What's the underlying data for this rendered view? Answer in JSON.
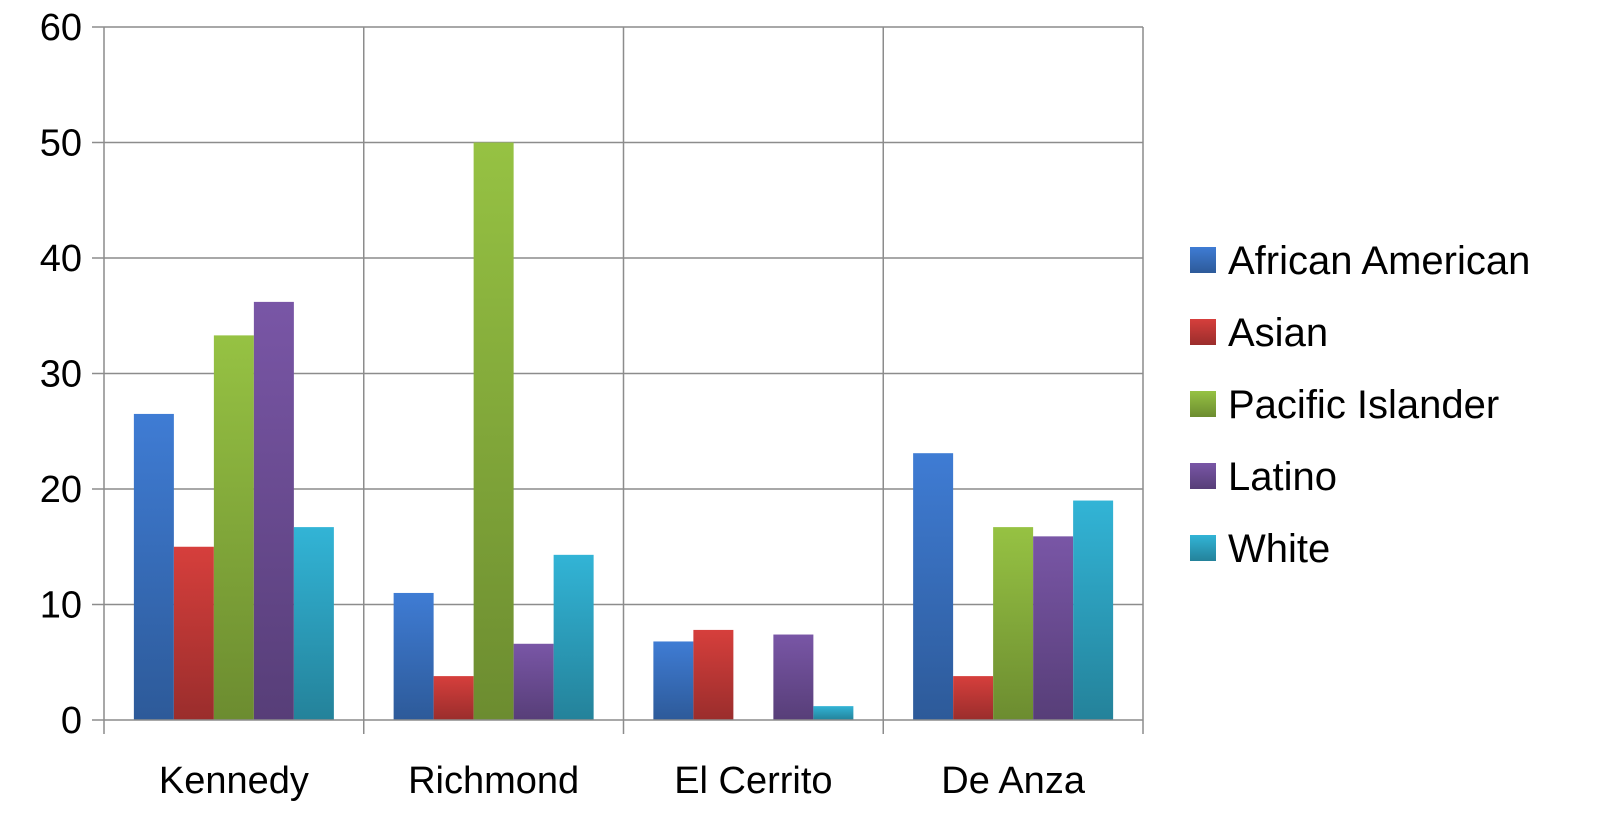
{
  "chart_data": {
    "type": "bar",
    "categories": [
      "Kennedy",
      "Richmond",
      "El Cerrito",
      "De Anza"
    ],
    "series": [
      {
        "name": "African American",
        "values": [
          26.5,
          11,
          6.8,
          23.1
        ]
      },
      {
        "name": "Asian",
        "values": [
          15,
          3.8,
          7.8,
          3.8
        ]
      },
      {
        "name": "Pacific Islander",
        "values": [
          33.3,
          50,
          0,
          16.7
        ]
      },
      {
        "name": "Latino",
        "values": [
          36.2,
          6.6,
          7.4,
          15.9
        ]
      },
      {
        "name": "White",
        "values": [
          16.7,
          14.3,
          1.2,
          19
        ]
      }
    ],
    "ylim": [
      0,
      60
    ],
    "yticks": [
      0,
      10,
      20,
      30,
      40,
      50,
      60
    ],
    "grid": true,
    "legend_position": "right",
    "colors": {
      "African American": "#3a73c4",
      "Asian": "#c63a38",
      "Pacific Islander": "#8bb43e",
      "Latino": "#70509a",
      "White": "#2ea7c6"
    },
    "title": "",
    "xlabel": "",
    "ylabel": ""
  }
}
